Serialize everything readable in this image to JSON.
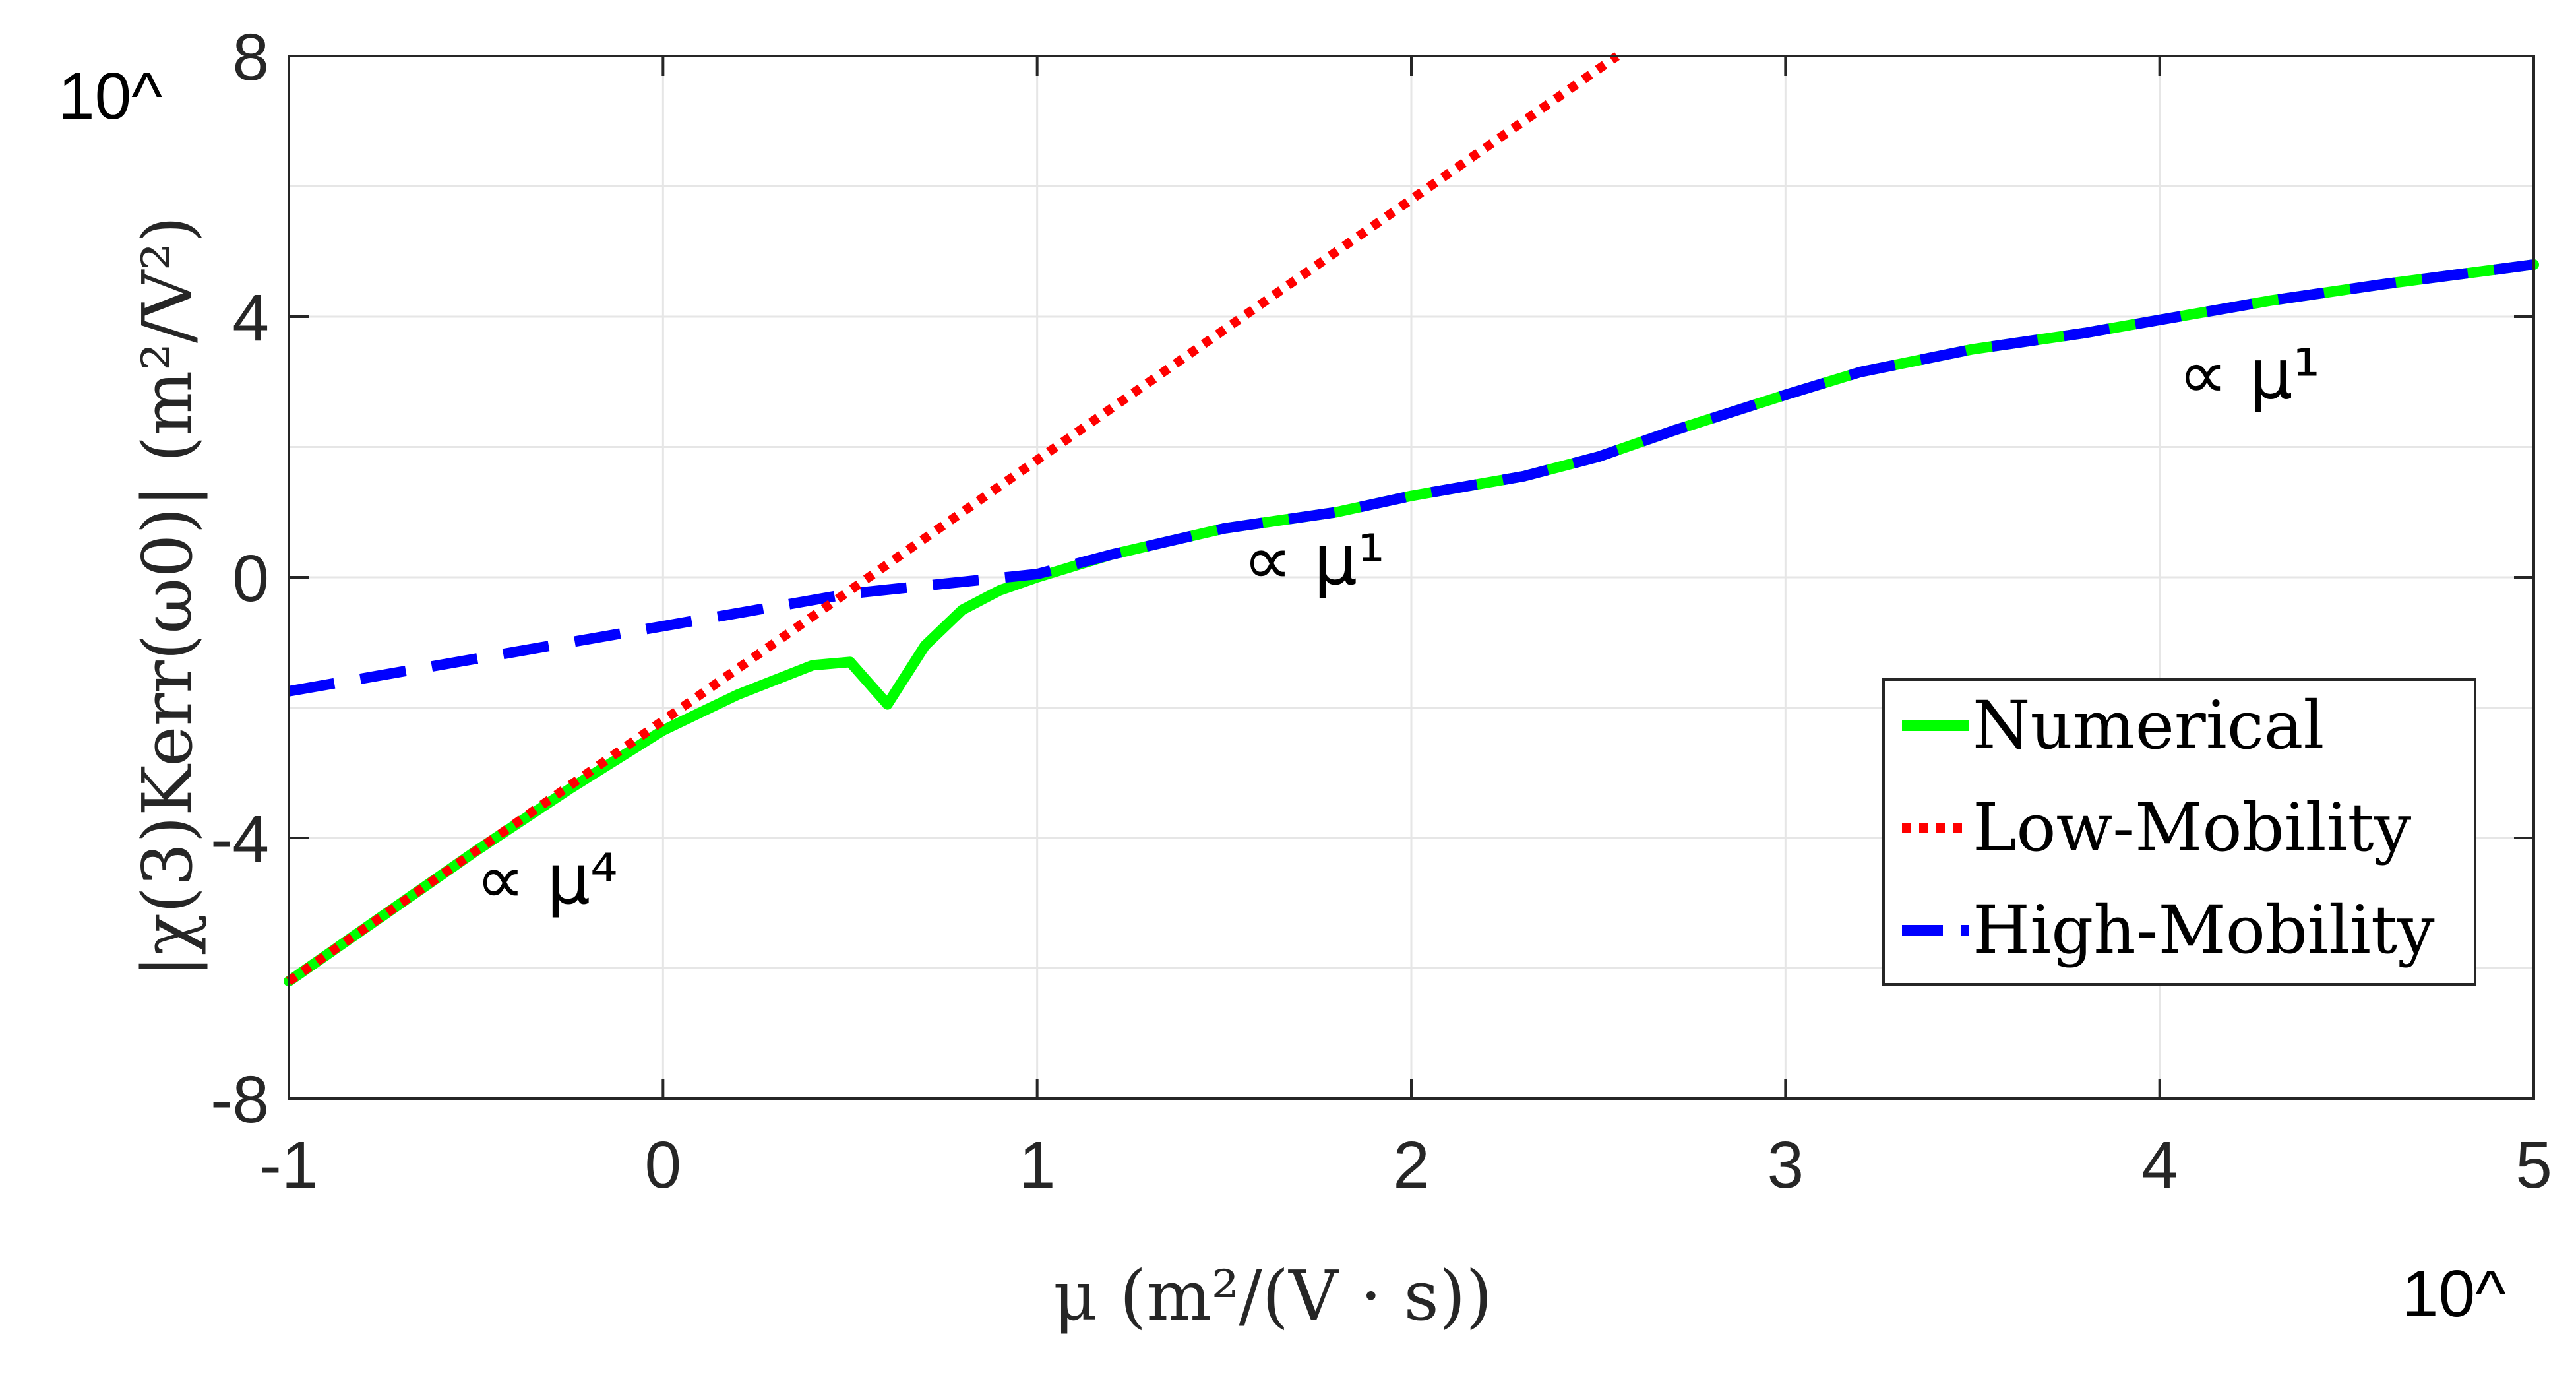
{
  "chart_data": {
    "type": "line",
    "xlabel": "μ (m²/(V · s))",
    "ylabel": "|χ(3)Kerr(ω0)| (m²/V²)",
    "x_corner_label": "10^",
    "y_corner_label": "10^",
    "xlim": [
      -1,
      5
    ],
    "ylim": [
      -8,
      8
    ],
    "log_scale": "both (exponents base 10)",
    "xticks": [
      "-1",
      "0",
      "1",
      "2",
      "3",
      "4",
      "5"
    ],
    "yticks": [
      "-8",
      "-4",
      "0",
      "4",
      "8"
    ],
    "grid": true,
    "legend_position": "lower-right",
    "series": [
      {
        "name": "Numerical",
        "color": "#00ff00",
        "style": "solid",
        "x": [
          -1,
          -0.75,
          -0.5,
          -0.25,
          0,
          0.2,
          0.4,
          0.5,
          0.6,
          0.7,
          0.8,
          0.9,
          1.0,
          1.2,
          1.5,
          1.8,
          2.0,
          2.3,
          2.5,
          2.7,
          3.0,
          3.2,
          3.5,
          3.8,
          4.0,
          4.3,
          4.6,
          5.0
        ],
        "y": [
          -6.2,
          -5.2,
          -4.2,
          -3.25,
          -2.35,
          -1.8,
          -1.35,
          -1.3,
          -1.95,
          -1.05,
          -0.5,
          -0.2,
          0.0,
          0.35,
          0.75,
          1.0,
          1.25,
          1.55,
          1.85,
          2.25,
          2.8,
          3.15,
          3.5,
          3.75,
          3.95,
          4.25,
          4.5,
          4.8
        ]
      },
      {
        "name": "Low-Mobility",
        "color": "#ff0000",
        "style": "dotted",
        "x": [
          -1,
          2.55
        ],
        "y": [
          -6.2,
          8.0
        ]
      },
      {
        "name": "High-Mobility",
        "color": "#0000ff",
        "style": "dashed",
        "x": [
          -1,
          0,
          0.5,
          1.0,
          1.2,
          1.5,
          1.8,
          2.0,
          2.3,
          2.5,
          2.7,
          3.0,
          3.2,
          3.5,
          3.8,
          4.0,
          4.3,
          4.6,
          5.0
        ],
        "y": [
          -1.75,
          -0.75,
          -0.25,
          0.05,
          0.35,
          0.75,
          1.0,
          1.25,
          1.55,
          1.85,
          2.25,
          2.8,
          3.15,
          3.5,
          3.75,
          3.95,
          4.25,
          4.5,
          4.8
        ]
      }
    ],
    "annotations": [
      {
        "text": "∝ μ⁴",
        "x": -0.5,
        "y": -5.0
      },
      {
        "text": "∝ μ¹",
        "x": 1.55,
        "y": -0.1
      },
      {
        "text": "∝ μ¹",
        "x": 4.05,
        "y": 2.75
      }
    ]
  }
}
